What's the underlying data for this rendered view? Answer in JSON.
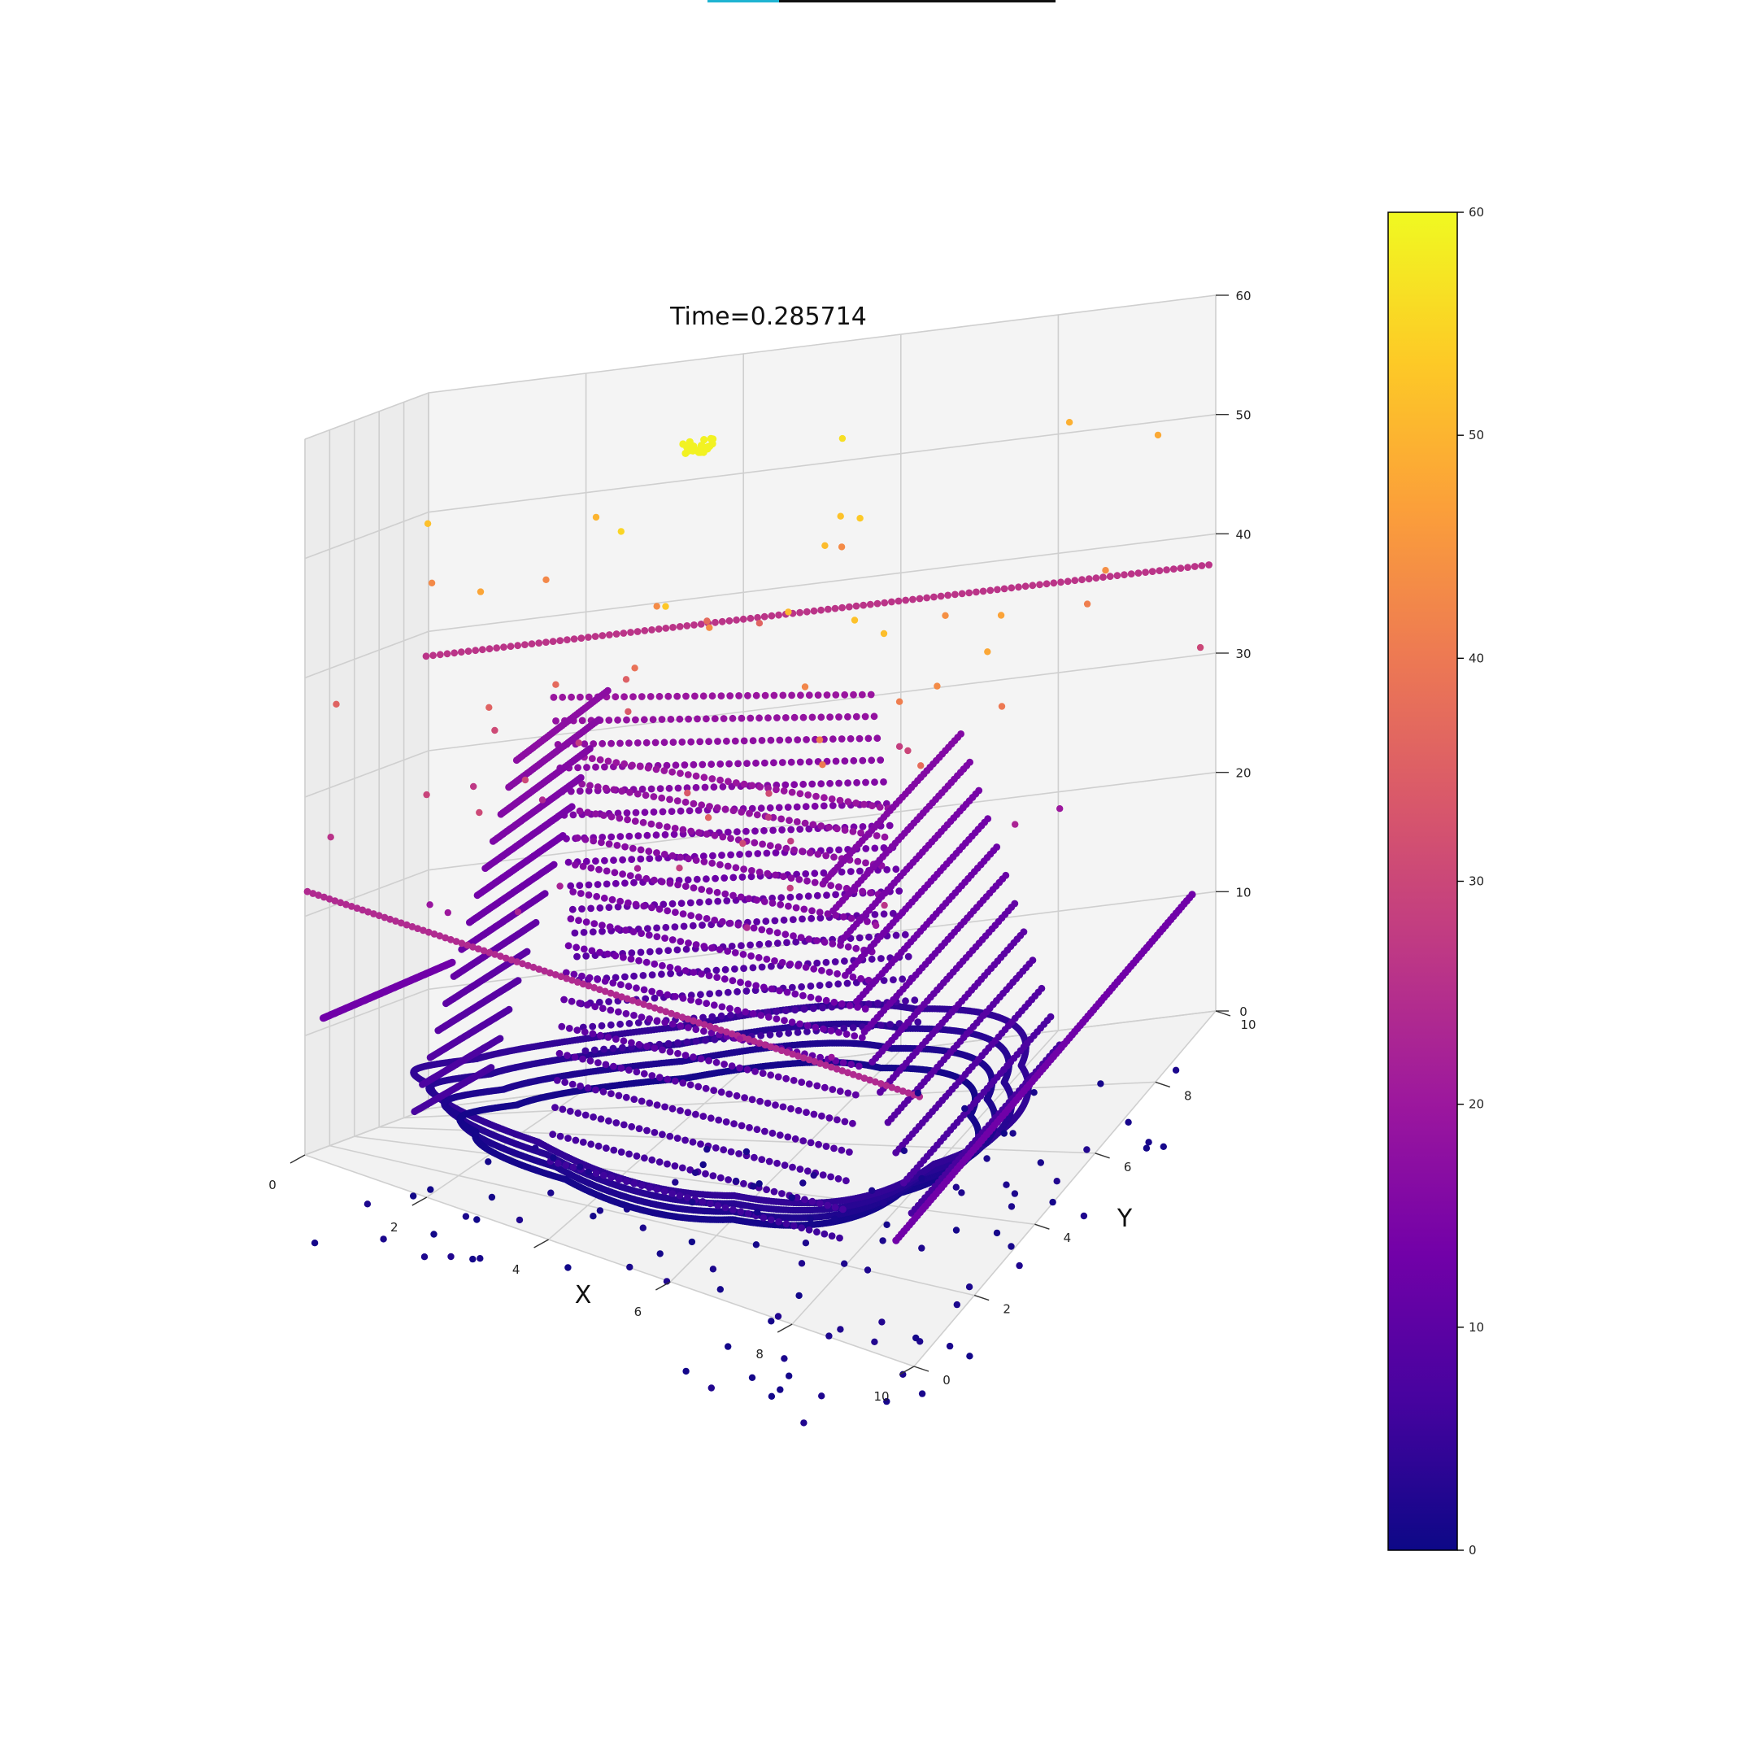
{
  "chart_data": {
    "type": "scatter",
    "projection": "3d",
    "title": "Time=0.285714",
    "xlabel": "X",
    "ylabel": "Y",
    "zlabel": "",
    "xlim": [
      0,
      10
    ],
    "ylim": [
      0,
      10
    ],
    "zlim": [
      0,
      60
    ],
    "xticks": [
      "0",
      "2",
      "4",
      "6",
      "8",
      "10"
    ],
    "yticks": [
      "0",
      "2",
      "4",
      "6",
      "8",
      "10"
    ],
    "zticks": [
      "0",
      "10",
      "20",
      "30",
      "40",
      "50",
      "60"
    ],
    "colormap": "plasma",
    "colorbar": {
      "min": 0,
      "max": 60,
      "ticks": [
        "0",
        "10",
        "20",
        "30",
        "40",
        "50",
        "60"
      ],
      "colors": [
        "#0d0887",
        "#46039f",
        "#7201a8",
        "#9c179e",
        "#bd3786",
        "#d8576b",
        "#ed7953",
        "#fb9f3a",
        "#fdca26",
        "#f0f921"
      ]
    },
    "grid": true,
    "pane_color": "#f2f2f2",
    "description_of_series": {
      "ring": "dense band of points around an octagonal ring near z 0-10",
      "walls": "stacked point rows forming sloped walls on two sides",
      "lines": "long straight rows of points at z 10-40",
      "scatter": "sparse outliers above and below the surface"
    }
  }
}
